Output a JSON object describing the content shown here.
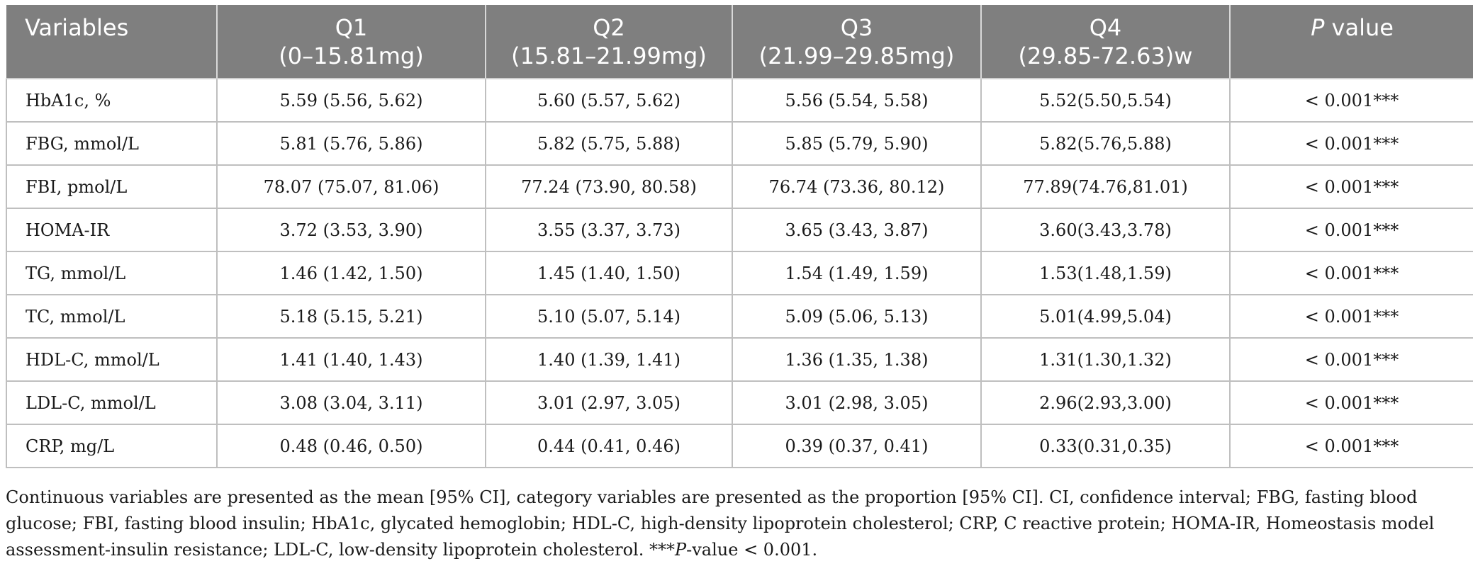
{
  "table": {
    "headers": [
      {
        "line1": "Variables",
        "line2": ""
      },
      {
        "line1": "Q1",
        "line2": "(0–15.81mg)"
      },
      {
        "line1": "Q2",
        "line2": "(15.81–21.99mg)"
      },
      {
        "line1": "Q3",
        "line2": "(21.99–29.85mg)"
      },
      {
        "line1": "Q4",
        "line2": "(29.85-72.63)w"
      },
      {
        "line1_italic": "P",
        "line1_rest": " value",
        "line2": ""
      }
    ],
    "rows": [
      {
        "variable": "HbA1c, %",
        "q1": "5.59 (5.56, 5.62)",
        "q2": "5.60 (5.57, 5.62)",
        "q3": "5.56 (5.54, 5.58)",
        "q4": "5.52(5.50,5.54)",
        "p": "< 0.001***"
      },
      {
        "variable": "FBG, mmol/L",
        "q1": "5.81 (5.76, 5.86)",
        "q2": "5.82 (5.75, 5.88)",
        "q3": "5.85 (5.79, 5.90)",
        "q4": "5.82(5.76,5.88)",
        "p": "< 0.001***"
      },
      {
        "variable": "FBI, pmol/L",
        "q1": "78.07 (75.07, 81.06)",
        "q2": "77.24 (73.90, 80.58)",
        "q3": "76.74 (73.36, 80.12)",
        "q4": "77.89(74.76,81.01)",
        "p": "< 0.001***"
      },
      {
        "variable": "HOMA-IR",
        "q1": "3.72 (3.53, 3.90)",
        "q2": "3.55 (3.37, 3.73)",
        "q3": "3.65 (3.43, 3.87)",
        "q4": "3.60(3.43,3.78)",
        "p": "< 0.001***"
      },
      {
        "variable": "TG, mmol/L",
        "q1": "1.46 (1.42, 1.50)",
        "q2": "1.45 (1.40, 1.50)",
        "q3": "1.54 (1.49, 1.59)",
        "q4": "1.53(1.48,1.59)",
        "p": "< 0.001***"
      },
      {
        "variable": "TC, mmol/L",
        "q1": "5.18 (5.15, 5.21)",
        "q2": "5.10 (5.07, 5.14)",
        "q3": "5.09 (5.06, 5.13)",
        "q4": "5.01(4.99,5.04)",
        "p": "< 0.001***"
      },
      {
        "variable": "HDL-C, mmol/L",
        "q1": "1.41 (1.40, 1.43)",
        "q2": "1.40 (1.39, 1.41)",
        "q3": "1.36 (1.35, 1.38)",
        "q4": "1.31(1.30,1.32)",
        "p": "< 0.001***"
      },
      {
        "variable": "LDL-C, mmol/L",
        "q1": "3.08 (3.04, 3.11)",
        "q2": "3.01 (2.97, 3.05)",
        "q3": "3.01 (2.98, 3.05)",
        "q4": "2.96(2.93,3.00)",
        "p": "< 0.001***"
      },
      {
        "variable": "CRP, mg/L",
        "q1": "0.48 (0.46, 0.50)",
        "q2": "0.44 (0.41, 0.46)",
        "q3": "0.39 (0.37, 0.41)",
        "q4": "0.33(0.31,0.35)",
        "p": "< 0.001***"
      }
    ]
  },
  "footnote": {
    "text_main": "Continuous variables are presented as the mean [95% CI], category variables are presented as the proportion [95% CI]. CI, confidence interval; FBG, fasting blood glucose; FBI, fasting blood insulin; HbA1c, glycated hemoglobin; HDL-C, high-density lipoprotein cholesterol; CRP, C reactive protein; HOMA-IR, Homeostasis model assessment-insulin resistance; LDL-C, low-density lipoprotein cholesterol. ***",
    "text_italic": "P",
    "text_end": "-value < 0.001."
  },
  "colors": {
    "header_bg": "#7f7f7f",
    "header_text": "#ffffff",
    "grid": "#bfbfbf"
  }
}
